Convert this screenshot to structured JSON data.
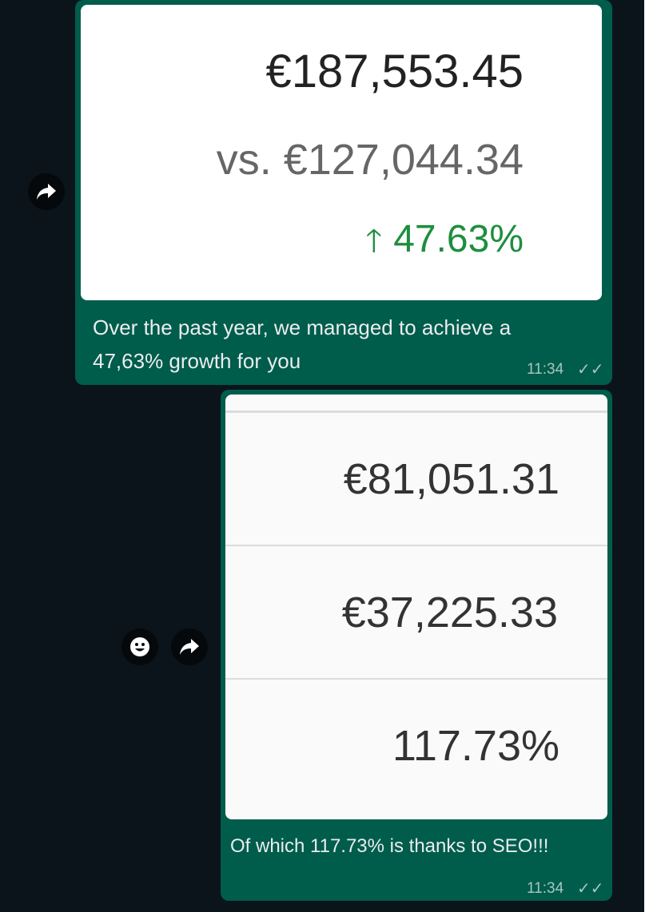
{
  "colors": {
    "background": "#0b141a",
    "bubble": "#005c4b",
    "growth": "#1e8e3e"
  },
  "message1": {
    "image": {
      "total": "€187,553.45",
      "comparison": "vs. €127,044.34",
      "change_icon": "arrow-up-icon",
      "change": "47.63%"
    },
    "text_line1": "Over the past year, we managed to achieve a",
    "text_line2": "47,63% growth for you",
    "time": "11:34",
    "status_icon": "double-check-icon"
  },
  "message2": {
    "image": {
      "rows": [
        "€81,051.31",
        "€37,225.33",
        "117.73%"
      ]
    },
    "text": "Of which 117.73% is thanks to SEO!!!",
    "time": "11:34",
    "status_icon": "double-check-icon"
  },
  "actions": {
    "forward_icon": "forward-icon",
    "react_icon": "emoji-icon"
  }
}
